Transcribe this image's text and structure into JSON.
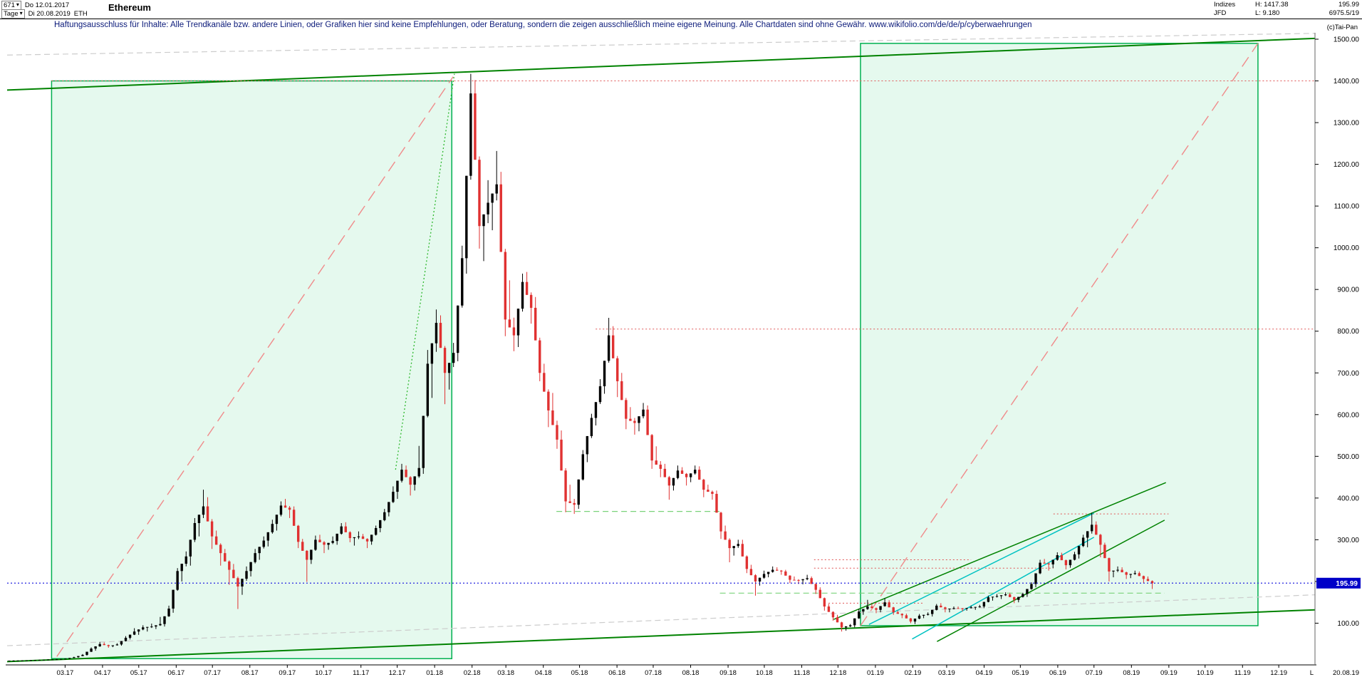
{
  "toolbar": {
    "period_count": "671",
    "start_date": "Do 12.01.2017",
    "timeframe": "Tage",
    "end_date": "Di 20.08.2019",
    "ticker": "ETH",
    "title": "Ethereum"
  },
  "info": {
    "market": "Indizes",
    "feed": "JFD",
    "high": "H: 1417.38",
    "low": "L: 9.180",
    "last": "195.99",
    "extra": "6975.5/19",
    "copyright": "(c)Tai-Pan"
  },
  "disclaimer": "Haftungsausschluss für Inhalte: Alle Trendkanäle bzw. andere Linien, oder Grafiken hier sind keine Empfehlungen, oder Beratung, sondern die zeigen ausschließlich meine eigene Meinung. Alle Chartdaten sind ohne Gewähr.  www.wikifolio.com/de/de/p/cyberwaehrungen",
  "icons": {
    "chevron_down": "▾"
  },
  "axis": {
    "y_ticks": [
      "100.00",
      "200.00",
      "300.00",
      "400.00",
      "500.00",
      "600.00",
      "700.00",
      "800.00",
      "900.00",
      "1000.00",
      "1100.00",
      "1200.00",
      "1300.00",
      "1400.00",
      "1500.00"
    ],
    "x_labels": [
      "03.17",
      "04.17",
      "05.17",
      "06.17",
      "07.17",
      "08.17",
      "09.17",
      "10.17",
      "11.17",
      "12.17",
      "01.18",
      "02.18",
      "03.18",
      "04.18",
      "05.18",
      "06.18",
      "07.18",
      "08.18",
      "09.18",
      "10.18",
      "11.18",
      "12.18",
      "01.19",
      "02.19",
      "03.19",
      "04.19",
      "05.19",
      "06.19",
      "07.19",
      "08.19",
      "09.19",
      "10.19",
      "11.19",
      "12.19"
    ],
    "price_tag": "195.99",
    "bottom_right_marker": "L",
    "bottom_right_date": "20.08.19"
  },
  "chart_data": {
    "type": "candlestick",
    "symbol": "Ethereum (ETH)",
    "title": "Ethereum daily candles, 12.01.2017 - 20.08.2019",
    "x_start": "2017-01-12",
    "x_end_data": "2019-08-20",
    "x_end_axis": "2019-12-31",
    "ylim": [
      0,
      1500
    ],
    "range_high": 1417.38,
    "range_low": 9.18,
    "last_close": 195.99,
    "weekly_ohlc": [
      [
        10.2,
        11.1,
        9.2,
        10.4
      ],
      [
        10.4,
        11.2,
        9.8,
        10.8
      ],
      [
        10.8,
        11.6,
        10.3,
        11.2
      ],
      [
        11.2,
        12.4,
        10.6,
        12
      ],
      [
        12,
        13.4,
        11.3,
        12.8
      ],
      [
        12.8,
        14,
        12.1,
        13.4
      ],
      [
        13.4,
        15.6,
        12.7,
        15
      ],
      [
        15,
        19.5,
        14.2,
        18.5
      ],
      [
        18.5,
        26,
        17.2,
        24
      ],
      [
        24,
        42,
        22,
        39
      ],
      [
        39,
        55,
        34,
        50
      ],
      [
        50,
        54,
        41,
        45
      ],
      [
        45,
        52,
        42.5,
        49
      ],
      [
        49,
        69,
        46,
        65
      ],
      [
        65,
        88,
        61,
        80
      ],
      [
        80,
        95,
        72,
        90
      ],
      [
        90,
        99,
        80,
        92
      ],
      [
        92,
        115,
        86,
        98
      ],
      [
        98,
        142,
        92,
        135
      ],
      [
        135,
        232,
        125,
        225
      ],
      [
        225,
        272,
        200,
        260
      ],
      [
        260,
        352,
        238,
        340
      ],
      [
        340,
        420,
        308,
        380
      ],
      [
        380,
        402,
        278,
        308
      ],
      [
        308,
        322,
        238,
        268
      ],
      [
        268,
        278,
        192,
        228
      ],
      [
        228,
        242,
        134,
        188
      ],
      [
        188,
        236,
        168,
        225
      ],
      [
        225,
        278,
        212,
        268
      ],
      [
        268,
        308,
        252,
        298
      ],
      [
        298,
        348,
        284,
        338
      ],
      [
        338,
        392,
        322,
        382
      ],
      [
        382,
        398,
        352,
        372
      ],
      [
        372,
        380,
        280,
        295
      ],
      [
        295,
        302,
        199,
        252
      ],
      [
        252,
        310,
        242,
        300
      ],
      [
        300,
        312,
        268,
        288
      ],
      [
        288,
        308,
        276,
        297
      ],
      [
        297,
        340,
        288,
        332
      ],
      [
        332,
        342,
        294,
        304
      ],
      [
        304,
        320,
        286,
        308
      ],
      [
        308,
        314,
        280,
        296
      ],
      [
        296,
        334,
        288,
        328
      ],
      [
        328,
        374,
        318,
        366
      ],
      [
        366,
        428,
        356,
        415
      ],
      [
        415,
        482,
        398,
        468
      ],
      [
        468,
        478,
        406,
        432
      ],
      [
        432,
        525,
        418,
        472
      ],
      [
        472,
        755,
        458,
        722
      ],
      [
        722,
        852,
        640,
        820
      ],
      [
        820,
        838,
        625,
        700
      ],
      [
        700,
        772,
        660,
        748
      ],
      [
        748,
        1005,
        728,
        975
      ],
      [
        975,
        1417,
        938,
        1370
      ],
      [
        1370,
        1402,
        998,
        1052
      ],
      [
        1052,
        1162,
        968,
        1108
      ],
      [
        1108,
        1232,
        1042,
        1152
      ],
      [
        1152,
        1182,
        788,
        828
      ],
      [
        828,
        922,
        752,
        790
      ],
      [
        790,
        938,
        762,
        918
      ],
      [
        918,
        942,
        818,
        856
      ],
      [
        856,
        882,
        680,
        700
      ],
      [
        700,
        722,
        570,
        610
      ],
      [
        610,
        652,
        518,
        540
      ],
      [
        540,
        562,
        366,
        392
      ],
      [
        392,
        432,
        362,
        384
      ],
      [
        384,
        515,
        374,
        505
      ],
      [
        505,
        602,
        486,
        592
      ],
      [
        592,
        685,
        574,
        668
      ],
      [
        668,
        832,
        650,
        790
      ],
      [
        790,
        812,
        642,
        680
      ],
      [
        680,
        700,
        565,
        590
      ],
      [
        590,
        618,
        552,
        580
      ],
      [
        580,
        628,
        560,
        612
      ],
      [
        612,
        622,
        470,
        490
      ],
      [
        490,
        524,
        450,
        470
      ],
      [
        470,
        482,
        396,
        430
      ],
      [
        430,
        478,
        418,
        466
      ],
      [
        466,
        474,
        430,
        450
      ],
      [
        450,
        478,
        438,
        468
      ],
      [
        468,
        476,
        402,
        420
      ],
      [
        420,
        432,
        396,
        410
      ],
      [
        410,
        418,
        302,
        320
      ],
      [
        320,
        334,
        246,
        280
      ],
      [
        280,
        300,
        262,
        290
      ],
      [
        290,
        300,
        220,
        230
      ],
      [
        230,
        240,
        166,
        200
      ],
      [
        200,
        226,
        190,
        218
      ],
      [
        218,
        236,
        210,
        228
      ],
      [
        228,
        234,
        216,
        224
      ],
      [
        224,
        228,
        196,
        204
      ],
      [
        204,
        212,
        194,
        203
      ],
      [
        203,
        216,
        193,
        208
      ],
      [
        208,
        212,
        170,
        180
      ],
      [
        180,
        186,
        130,
        140
      ],
      [
        140,
        146,
        106,
        114
      ],
      [
        114,
        120,
        80,
        90
      ],
      [
        90,
        98,
        82,
        95
      ],
      [
        95,
        134,
        90,
        128
      ],
      [
        128,
        156,
        120,
        140
      ],
      [
        140,
        146,
        124,
        132
      ],
      [
        132,
        160,
        126,
        150
      ],
      [
        150,
        155,
        120,
        126
      ],
      [
        126,
        130,
        112,
        119
      ],
      [
        119,
        123,
        100,
        104
      ],
      [
        104,
        122,
        98,
        118
      ],
      [
        118,
        126,
        112,
        122
      ],
      [
        122,
        146,
        116,
        142
      ],
      [
        142,
        148,
        126,
        134
      ],
      [
        134,
        140,
        126,
        136
      ],
      [
        136,
        140,
        128,
        135
      ],
      [
        135,
        142,
        130,
        138
      ],
      [
        138,
        144,
        132,
        140
      ],
      [
        140,
        166,
        136,
        162
      ],
      [
        162,
        170,
        154,
        165
      ],
      [
        165,
        174,
        158,
        169
      ],
      [
        169,
        173,
        148,
        156
      ],
      [
        156,
        173,
        150,
        170
      ],
      [
        170,
        198,
        163,
        194
      ],
      [
        194,
        252,
        186,
        245
      ],
      [
        245,
        254,
        226,
        241
      ],
      [
        241,
        270,
        232,
        263
      ],
      [
        263,
        269,
        229,
        239
      ],
      [
        239,
        271,
        233,
        265
      ],
      [
        265,
        312,
        255,
        305
      ],
      [
        305,
        365,
        282,
        336
      ],
      [
        336,
        344,
        258,
        288
      ],
      [
        288,
        293,
        200,
        224
      ],
      [
        224,
        236,
        210,
        228
      ],
      [
        228,
        234,
        206,
        216
      ],
      [
        216,
        226,
        208,
        220
      ],
      [
        220,
        224,
        196,
        206
      ],
      [
        206,
        212,
        182,
        195.99
      ]
    ],
    "colors": {
      "up": "#000000",
      "down": "#e03131",
      "channel_green": "#008200",
      "box_fill": "rgba(0,200,90,0.10)",
      "box_border": "#00b050",
      "red_dashed": "#f08a8a",
      "red_dotted": "#e05555",
      "green_dashed": "#79d279",
      "green_dotted": "#2eb82e",
      "cyan": "#00c2c2",
      "gray_dashed": "#cccccc",
      "last_price_blue": "#2424e0",
      "tag_bg": "#0000c8",
      "axis": "#000000"
    },
    "annotations": {
      "boxes": [
        {
          "name": "green-box-2017-rally",
          "x": [
            0.034,
            0.34
          ],
          "price": [
            15,
            1400
          ]
        },
        {
          "name": "green-box-2019",
          "x": [
            0.6525,
            0.9564
          ],
          "price": [
            94,
            1490
          ]
        }
      ],
      "lines": [
        {
          "name": "channel-top",
          "x": [
            0,
            1
          ],
          "price": [
            1378,
            1502
          ],
          "style": "solid",
          "color_key": "channel_green",
          "w": 2
        },
        {
          "name": "channel-bottom",
          "x": [
            0,
            1
          ],
          "price": [
            8,
            132
          ],
          "style": "solid",
          "color_key": "channel_green",
          "w": 2
        },
        {
          "name": "outer-gray-top",
          "x": [
            0,
            1
          ],
          "price": [
            1462,
            1514
          ],
          "style": "dash",
          "color_key": "gray_dashed",
          "w": 1.2
        },
        {
          "name": "outer-gray-bottom",
          "x": [
            0,
            1
          ],
          "price": [
            46,
            168
          ],
          "style": "dash",
          "color_key": "gray_dashed",
          "w": 1.2
        },
        {
          "name": "rally-2017-diagonal",
          "x": [
            0.038,
            0.341
          ],
          "price": [
            20,
            1410
          ],
          "style": "longdash",
          "color_key": "red_dashed",
          "w": 1.4
        },
        {
          "name": "box2-diagonal",
          "x": [
            0.6525,
            0.9564
          ],
          "price": [
            94,
            1490
          ],
          "style": "longdash",
          "color_key": "red_dashed",
          "w": 1.4
        },
        {
          "name": "resistance-1400",
          "x": [
            0.034,
            1
          ],
          "price": [
            1400,
            1400
          ],
          "style": "dot",
          "color_key": "red_dotted",
          "w": 1
        },
        {
          "name": "resistance-805",
          "x": [
            0.45,
            1
          ],
          "price": [
            805,
            805
          ],
          "style": "dot",
          "color_key": "red_dotted",
          "w": 1
        },
        {
          "name": "resistance-362",
          "x": [
            0.8,
            0.888
          ],
          "price": [
            362,
            362
          ],
          "style": "dot",
          "color_key": "red_dotted",
          "w": 1
        },
        {
          "name": "resistance-252",
          "x": [
            0.617,
            0.737
          ],
          "price": [
            252,
            252
          ],
          "style": "dot",
          "color_key": "red_dotted",
          "w": 1
        },
        {
          "name": "resistance-232",
          "x": [
            0.617,
            0.8
          ],
          "price": [
            232,
            232
          ],
          "style": "dot",
          "color_key": "red_dotted",
          "w": 1
        },
        {
          "name": "support-148",
          "x": [
            0.628,
            0.7
          ],
          "price": [
            148,
            148
          ],
          "style": "dot",
          "color_key": "red_dotted",
          "w": 1
        },
        {
          "name": "support-368-green",
          "x": [
            0.42,
            0.546
          ],
          "price": [
            368,
            368
          ],
          "style": "dash",
          "color_key": "green_dashed",
          "w": 1.2
        },
        {
          "name": "support-172-green",
          "x": [
            0.545,
            0.885
          ],
          "price": [
            172,
            172
          ],
          "style": "dash",
          "color_key": "green_dashed",
          "w": 1.2
        },
        {
          "name": "rally-dec17-green",
          "x": [
            0.297,
            0.342
          ],
          "price": [
            468,
            1417
          ],
          "style": "dot",
          "color_key": "green_dotted",
          "w": 1.3
        },
        {
          "name": "wedge-2019-green-upper",
          "x": [
            0.632,
            0.886
          ],
          "price": [
            109,
            437
          ],
          "style": "solid",
          "color_key": "channel_green",
          "w": 1.5
        },
        {
          "name": "wedge-2019-green-lower",
          "x": [
            0.711,
            0.885
          ],
          "price": [
            56,
            347
          ],
          "style": "solid",
          "color_key": "channel_green",
          "w": 1.5
        },
        {
          "name": "wedge-2019-cyan-upper",
          "x": [
            0.659,
            0.831
          ],
          "price": [
            97,
            364
          ],
          "style": "solid",
          "color_key": "cyan",
          "w": 1.5
        },
        {
          "name": "wedge-2019-cyan-lower",
          "x": [
            0.692,
            0.831
          ],
          "price": [
            62,
            306
          ],
          "style": "solid",
          "color_key": "cyan",
          "w": 1.5
        },
        {
          "name": "last-price-line",
          "x": [
            0,
            1
          ],
          "price": [
            195.99,
            195.99
          ],
          "style": "dot",
          "color_key": "last_price_blue",
          "w": 1.2
        }
      ]
    }
  }
}
